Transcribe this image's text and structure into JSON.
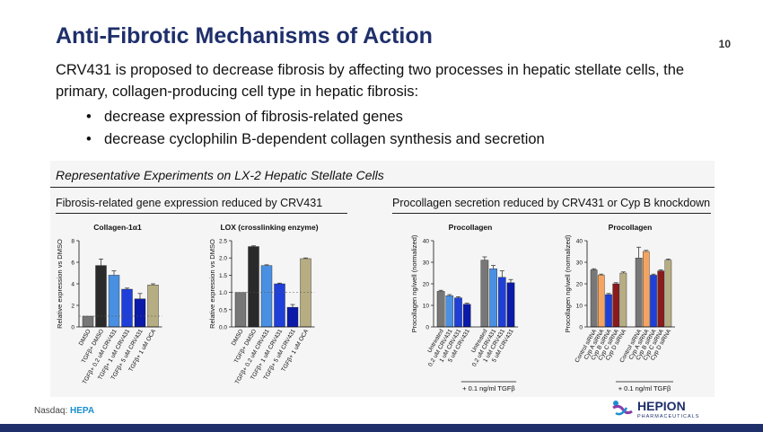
{
  "slide": {
    "title": "Anti-Fibrotic Mechanisms of Action",
    "page_number": "10",
    "intro": "CRV431 is proposed to decrease fibrosis by affecting two processes in hepatic stellate cells, the primary, collagen-producing cell type in hepatic fibrosis:",
    "bullets": [
      "decrease expression of fibrosis-related genes",
      "decrease cyclophilin B-dependent collagen synthesis and secretion"
    ],
    "panel_title": "Representative Experiments on LX-2 Hepatic Stellate Cells",
    "left_subtitle": "Fibrosis-related gene expression reduced by CRV431",
    "right_subtitle": "Procollagen secretion reduced by CRV431 or Cyp B knockdown",
    "footer": {
      "prefix": "Nasdaq:",
      "ticker": "HEPA"
    },
    "logo": {
      "name": "HEPION",
      "tagline": "PHARMACEUTICALS"
    }
  },
  "chart_data": [
    {
      "type": "bar",
      "title": "Collagen-1α1",
      "ylabel": "Relative expression vs DMSO",
      "ylim": [
        0,
        8
      ],
      "yticks": [
        "0",
        "2",
        "4",
        "6",
        "8"
      ],
      "categories": [
        "DMSO",
        "TGFβ+ DMSO",
        "TGFβ+ 0.2 uM CRV431",
        "TGFβ+ 1 uM CRV431",
        "TGFβ+ 5 uM CRV431",
        "TGFβ+ 1 uM OCA"
      ],
      "values": [
        1.0,
        5.7,
        4.8,
        3.5,
        2.6,
        3.9
      ],
      "errors": [
        0,
        0.6,
        0.4,
        0.1,
        0.5,
        0.1
      ],
      "colors": [
        "#777777",
        "#2a2a2a",
        "#4a90e2",
        "#1f3fd9",
        "#0b1aa8",
        "#b7ad83"
      ]
    },
    {
      "type": "bar",
      "title": "LOX (crosslinking enzyme)",
      "ylabel": "Relative expression vs DMSO",
      "ylim": [
        0,
        2.5
      ],
      "yticks": [
        "0.0",
        "0.5",
        "1.0",
        "1.5",
        "2.0",
        "2.5"
      ],
      "categories": [
        "DMSO",
        "TGFβ+ DMSO",
        "TGFβ+ 0.2 uM CRV431",
        "TGFβ+ 1 uM CRV431",
        "TGFβ+ 5 uM CRV431",
        "TGFβ+ 1 uM OCA"
      ],
      "values": [
        1.0,
        2.33,
        1.78,
        1.25,
        0.57,
        1.98
      ],
      "errors": [
        0,
        0.02,
        0.02,
        0.02,
        0.08,
        0.02
      ],
      "colors": [
        "#777777",
        "#2a2a2a",
        "#4a90e2",
        "#1f3fd9",
        "#0b1aa8",
        "#b7ad83"
      ]
    },
    {
      "type": "bar",
      "title": "Procollagen",
      "ylabel": "Procollagen ng/well (normalized)",
      "ylim": [
        0,
        40
      ],
      "yticks": [
        "0",
        "10",
        "20",
        "30",
        "40"
      ],
      "categories": [
        "Untreated",
        "0.2 uM CRV431",
        "1 uM CRV431",
        "5 uM CRV431",
        "Untreated",
        "0.2 uM CRV431",
        "1 uM CRV431",
        "5 uM CRV431"
      ],
      "values": [
        16.5,
        14.5,
        13.5,
        10.5,
        31,
        27,
        23,
        20.5
      ],
      "errors": [
        0.5,
        0.5,
        0.5,
        0.5,
        1.5,
        1.5,
        3,
        1.5
      ],
      "colors": [
        "#777777",
        "#4a90e2",
        "#1f3fd9",
        "#0b1aa8",
        "#777777",
        "#4a90e2",
        "#1f3fd9",
        "#0b1aa8"
      ],
      "group_label": "+ 0.1 ng/ml TGFβ"
    },
    {
      "type": "bar",
      "title": "Procollagen",
      "ylabel": "Procollagen ng/well (normalized)",
      "ylim": [
        0,
        40
      ],
      "yticks": [
        "0",
        "10",
        "20",
        "30",
        "40"
      ],
      "categories": [
        "Control siRNA",
        "Cyp A siRNA",
        "Cyp B siRNA",
        "Cyp C siRNA",
        "Cyp D siRNA",
        "Control siRNA",
        "Cyp A siRNA",
        "Cyp B siRNA",
        "Cyp C siRNA",
        "Cyp D siRNA"
      ],
      "values": [
        26.5,
        24,
        15,
        20,
        25,
        32,
        35,
        24,
        26,
        31
      ],
      "errors": [
        0.5,
        0.5,
        0.5,
        0.5,
        0.5,
        5,
        0.5,
        0.5,
        0.5,
        0.5
      ],
      "colors": [
        "#777777",
        "#f4a460",
        "#1f3fd9",
        "#8b1a1a",
        "#b7ad83",
        "#777777",
        "#f4a460",
        "#1f3fd9",
        "#8b1a1a",
        "#b7ad83"
      ],
      "group_label": "+ 0.1 ng/ml TGFβ"
    }
  ]
}
